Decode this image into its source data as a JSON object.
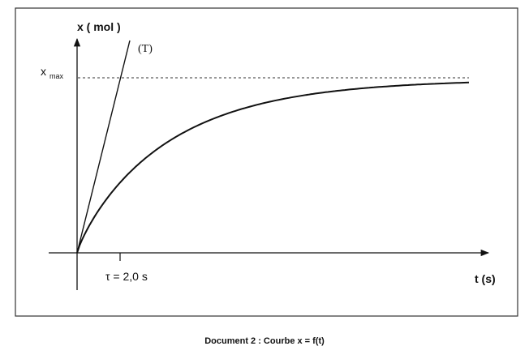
{
  "diagram": {
    "y_axis_label": "x ( mol )",
    "x_axis_label": "t (s)",
    "tangent_label": "(T)",
    "x_max": {
      "symbol": "x",
      "subscript": "max"
    },
    "tau_label": "τ = 2,0 s"
  },
  "caption": "Document 2 : Courbe x = f(t)"
}
